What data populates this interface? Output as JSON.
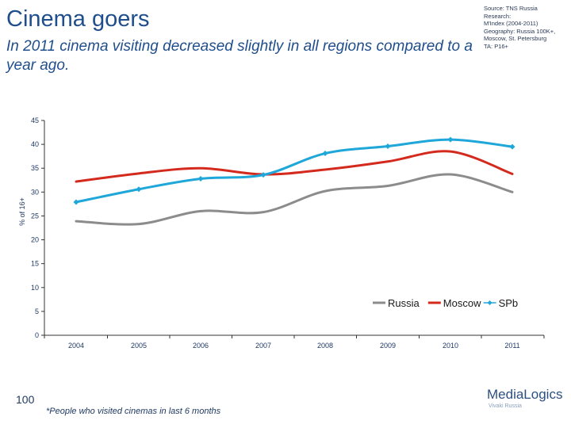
{
  "header": {
    "title": "Cinema goers",
    "subtitle": "In 2011 cinema visiting decreased slightly in all regions compared to a year ago.",
    "source": "Source: TNS Russia\nResearch:\nM'Index (2004-2011)\nGeography: Russia 100K+,\nMoscow, St. Petersburg\nTA: P16+"
  },
  "footer": {
    "page_number": "100",
    "footnote": "*People who visited cinemas in last 6 months",
    "logo_main": "MediaLogics",
    "logo_sub": "Vivaki Russia"
  },
  "chart_data": {
    "type": "line",
    "ylabel": "% of 16+",
    "xlabel": "",
    "x": [
      "2004",
      "2005",
      "2006",
      "2007",
      "2008",
      "2009",
      "2010",
      "2011"
    ],
    "ylim": [
      0,
      45
    ],
    "yticks": [
      0,
      5,
      10,
      15,
      20,
      25,
      30,
      35,
      40,
      45
    ],
    "legend_position": "bottom-right",
    "series": [
      {
        "name": "Russia",
        "color": "#8c8c8c",
        "marker": "none",
        "values": [
          23.9,
          23.3,
          26.0,
          25.8,
          30.2,
          31.3,
          33.7,
          30.0
        ]
      },
      {
        "name": "Moscow",
        "color": "#d42a1e",
        "marker": "none",
        "values": [
          32.2,
          33.9,
          35.0,
          33.7,
          34.7,
          36.4,
          38.5,
          33.8
        ]
      },
      {
        "name": "SPb",
        "color": "#1ea7d8",
        "marker": "diamond",
        "values": [
          27.9,
          30.6,
          32.8,
          33.6,
          38.1,
          39.6,
          41.0,
          39.5
        ]
      }
    ]
  }
}
